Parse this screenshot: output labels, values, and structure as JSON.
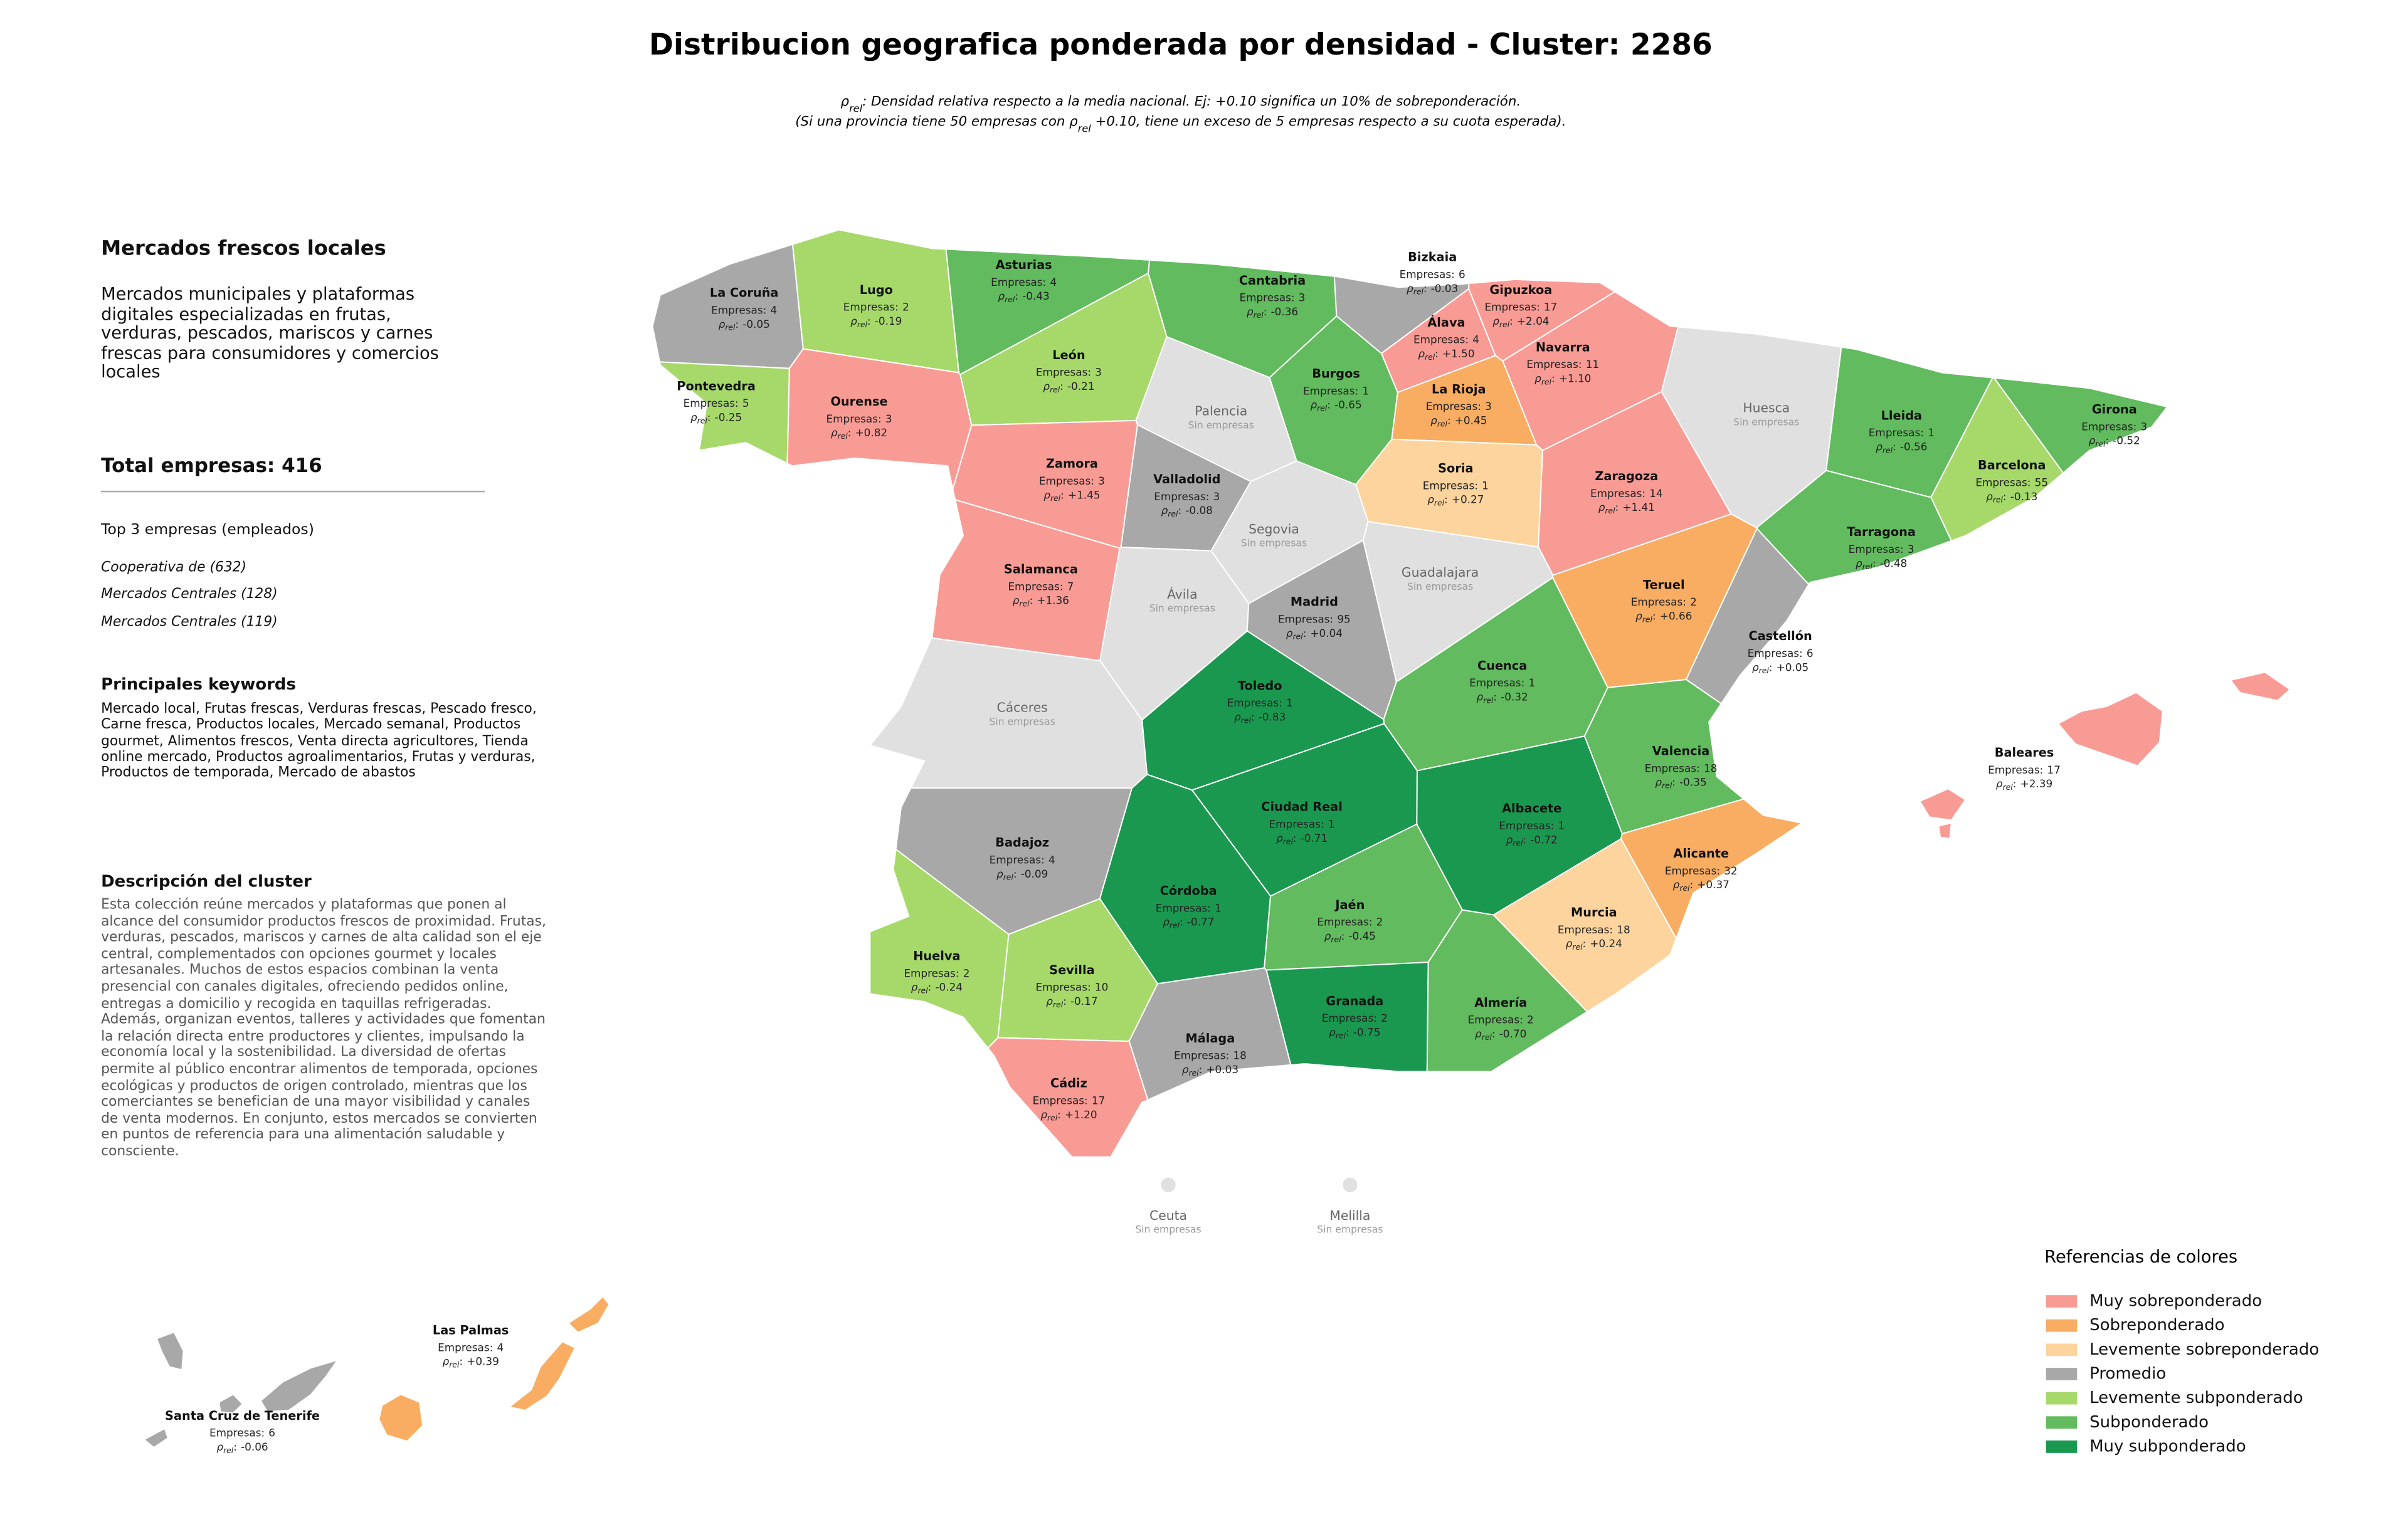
{
  "header": {
    "title": "Distribucion geografica ponderada por densidad - Cluster: 2286",
    "subtitle": [
      {
        "symbol": "ρ",
        "sub": "rel",
        "text": ": Densidad relativa respecto a la media nacional. Ej: +0.10 significa un 10% de sobreponderación."
      },
      {
        "before": "(Si una provincia tiene 50 empresas con ",
        "symbol": "ρ",
        "sub": "rel",
        "after": " +0.10, tiene un exceso de 5 empresas respecto a su cuota esperada)."
      }
    ]
  },
  "panel": {
    "title": "Mercados frescos locales",
    "description": "Mercados municipales y plataformas digitales especializadas en frutas, verduras, pescados, mariscos y carnes frescas para consumidores y comercios locales",
    "total": "Total empresas: 416",
    "top_title": "Top 3 empresas (empleados)",
    "top": [
      "Cooperativa de (632)",
      "Mercados Centrales (128)",
      "Mercados Centrales (119)"
    ],
    "keywords_title": "Principales keywords",
    "keywords": "Mercado local, Frutas frescas, Verduras frescas, Pescado fresco, Carne fresca, Productos locales, Mercado semanal, Productos gourmet, Alimentos frescos, Venta directa agricultores, Tienda online mercado, Productos agroalimentarios, Frutas y verduras, Productos de temporada, Mercado de abastos",
    "cluster_title": "Descripción del cluster",
    "cluster_text": "Esta colección reúne mercados y plataformas que ponen al alcance del consumidor productos frescos de proximidad. Frutas, verduras, pescados, mariscos y carnes de alta calidad son el eje central, complementados con opciones gourmet y locales artesanales. Muchos de estos espacios combinan la venta presencial con canales digitales, ofreciendo pedidos online, entregas a domicilio y recogida en taquillas refrigeradas. Además, organizan eventos, talleres y actividades que fomentan la relación directa entre productores y clientes, impulsando la economía local y la sostenibilidad. La diversidad de ofertas permite al público encontrar alimentos de temporada, opciones ecológicas y productos de origen controlado, mientras que los comerciantes se benefician de una mayor visibilidad y canales de venta modernos. En conjunto, estos mercados se convierten en puntos de referencia para una alimentación saludable y consciente."
  },
  "map": {
    "companies_label": "Empresas:",
    "rho_symbol": "ρ",
    "rho_sub": "rel",
    "rho_sep": ":",
    "no_data_color": "#e0e0e0",
    "provinces": [
      {
        "name": "La Coruña",
        "companies": 4,
        "rho": "-0.05",
        "level": 3
      },
      {
        "name": "Lugo",
        "companies": 2,
        "rho": "-0.19",
        "level": 4
      },
      {
        "name": "Asturias",
        "companies": 4,
        "rho": "-0.43",
        "level": 5
      },
      {
        "name": "Cantabria",
        "companies": 3,
        "rho": "-0.36",
        "level": 5
      },
      {
        "name": "Bizkaia",
        "companies": 6,
        "rho": "-0.03",
        "level": 3
      },
      {
        "name": "Gipuzkoa",
        "companies": 17,
        "rho": "+2.04",
        "level": 0
      },
      {
        "name": "Álava",
        "companies": 4,
        "rho": "+1.50",
        "level": 0
      },
      {
        "name": "Navarra",
        "companies": 11,
        "rho": "+1.10",
        "level": 0
      },
      {
        "name": "Pontevedra",
        "companies": 5,
        "rho": "-0.25",
        "level": 4
      },
      {
        "name": "Ourense",
        "companies": 3,
        "rho": "+0.82",
        "level": 0
      },
      {
        "name": "León",
        "companies": 3,
        "rho": "-0.21",
        "level": 4
      },
      {
        "name": "Palencia",
        "note": "Sin empresas"
      },
      {
        "name": "Burgos",
        "companies": 1,
        "rho": "-0.65",
        "level": 5
      },
      {
        "name": "La Rioja",
        "companies": 3,
        "rho": "+0.45",
        "level": 1
      },
      {
        "name": "Huesca",
        "note": "Sin empresas"
      },
      {
        "name": "Lleida",
        "companies": 1,
        "rho": "-0.56",
        "level": 5
      },
      {
        "name": "Girona",
        "companies": 3,
        "rho": "-0.52",
        "level": 5
      },
      {
        "name": "Barcelona",
        "companies": 55,
        "rho": "-0.13",
        "level": 4
      },
      {
        "name": "Zamora",
        "companies": 3,
        "rho": "+1.45",
        "level": 0
      },
      {
        "name": "Valladolid",
        "companies": 3,
        "rho": "-0.08",
        "level": 3
      },
      {
        "name": "Soria",
        "companies": 1,
        "rho": "+0.27",
        "level": 2
      },
      {
        "name": "Zaragoza",
        "companies": 14,
        "rho": "+1.41",
        "level": 0
      },
      {
        "name": "Tarragona",
        "companies": 3,
        "rho": "-0.48",
        "level": 5
      },
      {
        "name": "Segovia",
        "note": "Sin empresas"
      },
      {
        "name": "Salamanca",
        "companies": 7,
        "rho": "+1.36",
        "level": 0
      },
      {
        "name": "Guadalajara",
        "note": "Sin empresas"
      },
      {
        "name": "Teruel",
        "companies": 2,
        "rho": "+0.66",
        "level": 1
      },
      {
        "name": "Ávila",
        "note": "Sin empresas"
      },
      {
        "name": "Madrid",
        "companies": 95,
        "rho": "+0.04",
        "level": 3
      },
      {
        "name": "Castellón",
        "companies": 6,
        "rho": "+0.05",
        "level": 3
      },
      {
        "name": "Cuenca",
        "companies": 1,
        "rho": "-0.32",
        "level": 5
      },
      {
        "name": "Toledo",
        "companies": 1,
        "rho": "-0.83",
        "level": 6
      },
      {
        "name": "Cáceres",
        "note": "Sin empresas"
      },
      {
        "name": "Valencia",
        "companies": 18,
        "rho": "-0.35",
        "level": 5
      },
      {
        "name": "Baleares",
        "companies": 17,
        "rho": "+2.39",
        "level": 0
      },
      {
        "name": "Ciudad Real",
        "companies": 1,
        "rho": "-0.71",
        "level": 6
      },
      {
        "name": "Albacete",
        "companies": 1,
        "rho": "-0.72",
        "level": 6
      },
      {
        "name": "Badajoz",
        "companies": 4,
        "rho": "-0.09",
        "level": 3
      },
      {
        "name": "Alicante",
        "companies": 32,
        "rho": "+0.37",
        "level": 1
      },
      {
        "name": "Córdoba",
        "companies": 1,
        "rho": "-0.77",
        "level": 6
      },
      {
        "name": "Jaén",
        "companies": 2,
        "rho": "-0.45",
        "level": 5
      },
      {
        "name": "Murcia",
        "companies": 18,
        "rho": "+0.24",
        "level": 2
      },
      {
        "name": "Huelva",
        "companies": 2,
        "rho": "-0.24",
        "level": 4
      },
      {
        "name": "Sevilla",
        "companies": 10,
        "rho": "-0.17",
        "level": 4
      },
      {
        "name": "Granada",
        "companies": 2,
        "rho": "-0.75",
        "level": 6
      },
      {
        "name": "Almería",
        "companies": 2,
        "rho": "-0.70",
        "level": 5
      },
      {
        "name": "Málaga",
        "companies": 18,
        "rho": "+0.03",
        "level": 3
      },
      {
        "name": "Cádiz",
        "companies": 17,
        "rho": "+1.20",
        "level": 0
      },
      {
        "name": "Ceuta",
        "note": "Sin empresas"
      },
      {
        "name": "Melilla",
        "note": "Sin empresas"
      },
      {
        "name": "Las Palmas",
        "companies": 4,
        "rho": "+0.39",
        "level": 1
      },
      {
        "name": "Santa Cruz de Tenerife",
        "companies": 6,
        "rho": "-0.06",
        "level": 3
      }
    ]
  },
  "legend": {
    "title": "Referencias de colores",
    "items": [
      {
        "label": "Muy sobreponderado",
        "color": "#f99b95"
      },
      {
        "label": "Sobreponderado",
        "color": "#f8ad62"
      },
      {
        "label": "Levemente sobreponderado",
        "color": "#fdd49e"
      },
      {
        "label": "Promedio",
        "color": "#a8a8a8"
      },
      {
        "label": "Levemente subponderado",
        "color": "#a6d96a"
      },
      {
        "label": "Subponderado",
        "color": "#62bb5e"
      },
      {
        "label": "Muy subponderado",
        "color": "#1a9850"
      }
    ]
  }
}
